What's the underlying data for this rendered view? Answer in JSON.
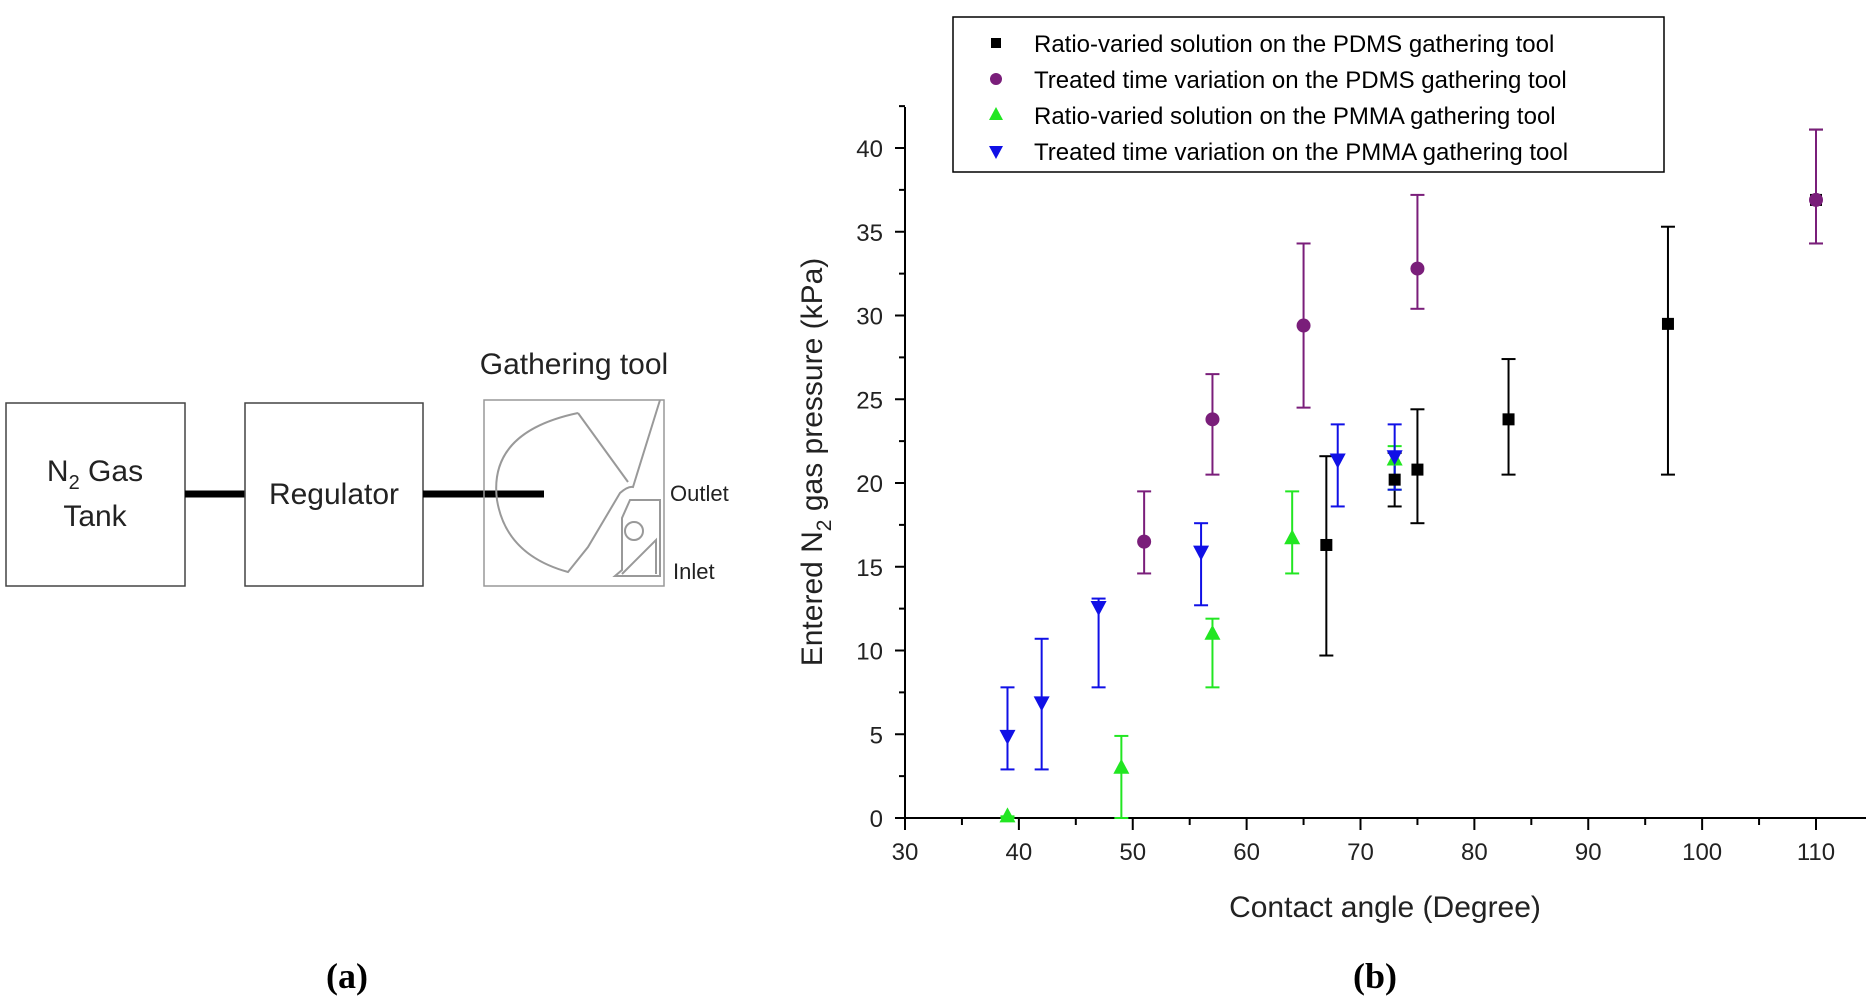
{
  "diagram": {
    "tank_label_main": "N",
    "tank_label_sub": "2",
    "tank_label_rest": " Gas",
    "tank_label_line2": "Tank",
    "regulator_label": "Regulator",
    "tool_title": "Gathering tool",
    "outlet_label": "Outlet",
    "inlet_label": "Inlet",
    "panel_label": "(a)"
  },
  "chart_panel_label": "(b)",
  "chart_data": {
    "type": "scatter",
    "title": "",
    "xlabel": "Contact angle (Degree)",
    "ylabel_pre": "Entered N",
    "ylabel_sub": "2",
    "ylabel_post": " gas pressure (kPa)",
    "xlim": [
      30,
      115
    ],
    "ylim": [
      0,
      42.5
    ],
    "xticks": [
      30,
      40,
      50,
      60,
      70,
      80,
      90,
      100,
      110
    ],
    "yticks": [
      0,
      5,
      10,
      15,
      20,
      25,
      30,
      35,
      40
    ],
    "series": [
      {
        "name": "Ratio-varied solution on the PDMS gathering tool",
        "color": "#000000",
        "marker": "square",
        "points": [
          {
            "x": 67,
            "y": 16.3,
            "err_lo": 9.7,
            "err_hi": 21.6
          },
          {
            "x": 73,
            "y": 20.2,
            "err_lo": 18.6,
            "err_hi": 21.8
          },
          {
            "x": 75,
            "y": 20.8,
            "err_lo": 17.6,
            "err_hi": 24.4
          },
          {
            "x": 83,
            "y": 23.8,
            "err_lo": 20.5,
            "err_hi": 27.4
          },
          {
            "x": 97,
            "y": 29.5,
            "err_lo": 20.5,
            "err_hi": 35.3
          },
          {
            "x": 110,
            "y": 36.9,
            "err_lo": 34.3,
            "err_hi": 41.1
          }
        ]
      },
      {
        "name": "Treated time variation on the PDMS gathering tool",
        "color": "#7a1e7a",
        "marker": "circle",
        "points": [
          {
            "x": 51,
            "y": 16.5,
            "err_lo": 14.6,
            "err_hi": 19.5
          },
          {
            "x": 57,
            "y": 23.8,
            "err_lo": 20.5,
            "err_hi": 26.5
          },
          {
            "x": 65,
            "y": 29.4,
            "err_lo": 24.5,
            "err_hi": 34.3
          },
          {
            "x": 75,
            "y": 32.8,
            "err_lo": 30.4,
            "err_hi": 37.2
          },
          {
            "x": 110,
            "y": 36.9,
            "err_lo": 34.3,
            "err_hi": 41.1
          }
        ]
      },
      {
        "name": "Ratio-varied solution on the PMMA gathering tool",
        "color": "#22e622",
        "marker": "triangle-up",
        "points": [
          {
            "x": 39,
            "y": 0.1,
            "err_lo": 0,
            "err_hi": 0.1
          },
          {
            "x": 49,
            "y": 3.0,
            "err_lo": 0,
            "err_hi": 4.9
          },
          {
            "x": 57,
            "y": 11.0,
            "err_lo": 7.8,
            "err_hi": 11.9
          },
          {
            "x": 64,
            "y": 16.7,
            "err_lo": 14.6,
            "err_hi": 19.5
          },
          {
            "x": 73,
            "y": 21.4,
            "err_lo": 19.6,
            "err_hi": 22.2
          }
        ]
      },
      {
        "name": "Treated time variation on the PMMA gathering tool",
        "color": "#1010e6",
        "marker": "triangle-down",
        "points": [
          {
            "x": 39,
            "y": 4.9,
            "err_lo": 2.9,
            "err_hi": 7.8
          },
          {
            "x": 42,
            "y": 6.9,
            "err_lo": 2.9,
            "err_hi": 10.7
          },
          {
            "x": 47,
            "y": 12.6,
            "err_lo": 7.8,
            "err_hi": 13.1
          },
          {
            "x": 56,
            "y": 15.9,
            "err_lo": 12.7,
            "err_hi": 17.6
          },
          {
            "x": 68,
            "y": 21.4,
            "err_lo": 18.6,
            "err_hi": 23.5
          },
          {
            "x": 73,
            "y": 21.6,
            "err_lo": 19.6,
            "err_hi": 23.5
          }
        ]
      }
    ]
  }
}
